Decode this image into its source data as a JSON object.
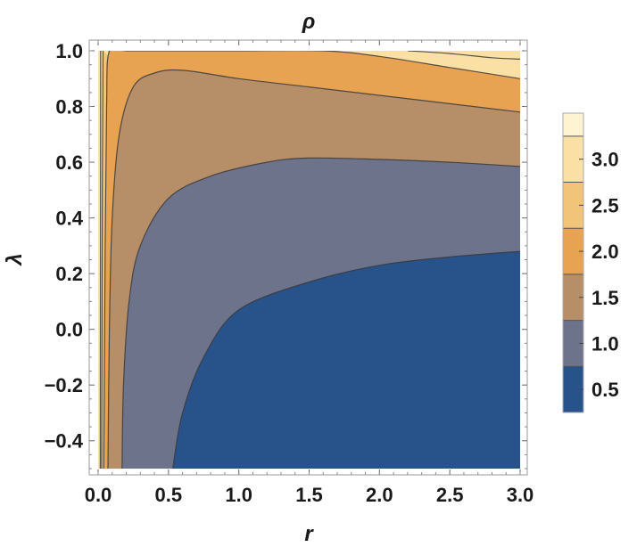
{
  "chart_data": {
    "type": "contour",
    "title": "ρ",
    "xlabel": "r",
    "ylabel": "λ",
    "xlim": [
      0,
      3
    ],
    "ylim": [
      -0.5,
      1.0
    ],
    "x_ticks": [
      {
        "value": 0.0,
        "label": "0.0"
      },
      {
        "value": 0.5,
        "label": "0.5"
      },
      {
        "value": 1.0,
        "label": "1.0"
      },
      {
        "value": 1.5,
        "label": "1.5"
      },
      {
        "value": 2.0,
        "label": "2.0"
      },
      {
        "value": 2.5,
        "label": "2.5"
      },
      {
        "value": 3.0,
        "label": "3.0"
      }
    ],
    "y_ticks": [
      {
        "value": -0.4,
        "label": "−0.4"
      },
      {
        "value": -0.2,
        "label": "−0.2"
      },
      {
        "value": 0.0,
        "label": "0.0"
      },
      {
        "value": 0.2,
        "label": "0.2"
      },
      {
        "value": 0.4,
        "label": "0.4"
      },
      {
        "value": 0.6,
        "label": "0.6"
      },
      {
        "value": 0.8,
        "label": "0.8"
      },
      {
        "value": 1.0,
        "label": "1.0"
      }
    ],
    "colorbar": {
      "range": [
        0.25,
        3.5
      ],
      "ticks": [
        {
          "value": 0.5,
          "label": "0.5"
        },
        {
          "value": 1.0,
          "label": "1.0"
        },
        {
          "value": 1.5,
          "label": "1.5"
        },
        {
          "value": 2.0,
          "label": "2.0"
        },
        {
          "value": 2.5,
          "label": "2.5"
        },
        {
          "value": 3.0,
          "label": "3.0"
        }
      ],
      "bands": [
        {
          "from": 0.25,
          "to": 0.75,
          "color": "#27528a"
        },
        {
          "from": 0.75,
          "to": 1.25,
          "color": "#6e738c"
        },
        {
          "from": 1.25,
          "to": 1.75,
          "color": "#b68e68"
        },
        {
          "from": 1.75,
          "to": 2.25,
          "color": "#e8a352"
        },
        {
          "from": 2.25,
          "to": 2.75,
          "color": "#f2c47a"
        },
        {
          "from": 2.75,
          "to": 3.25,
          "color": "#fbe0a6"
        },
        {
          "from": 3.25,
          "to": 3.5,
          "color": "#fff4d2"
        }
      ]
    },
    "contours": [
      {
        "level": 0.75,
        "points": [
          [
            0.53,
            -0.5
          ],
          [
            0.6,
            -0.3
          ],
          [
            0.75,
            -0.1
          ],
          [
            1.0,
            0.07
          ],
          [
            1.5,
            0.17
          ],
          [
            2.0,
            0.23
          ],
          [
            2.5,
            0.26
          ],
          [
            3.0,
            0.28
          ]
        ]
      },
      {
        "level": 1.25,
        "points": [
          [
            0.17,
            -0.5
          ],
          [
            0.18,
            -0.2
          ],
          [
            0.22,
            0.1
          ],
          [
            0.3,
            0.3
          ],
          [
            0.5,
            0.47
          ],
          [
            0.8,
            0.55
          ],
          [
            1.2,
            0.6
          ],
          [
            1.5,
            0.615
          ],
          [
            2.0,
            0.61
          ],
          [
            2.5,
            0.6
          ],
          [
            3.0,
            0.585
          ]
        ]
      },
      {
        "level": 1.75,
        "points": [
          [
            0.07,
            -0.5
          ],
          [
            0.08,
            0.0
          ],
          [
            0.1,
            0.4
          ],
          [
            0.15,
            0.7
          ],
          [
            0.25,
            0.87
          ],
          [
            0.4,
            0.92
          ],
          [
            0.6,
            0.93
          ],
          [
            1.0,
            0.9
          ],
          [
            1.5,
            0.87
          ],
          [
            2.0,
            0.84
          ],
          [
            2.5,
            0.81
          ],
          [
            3.0,
            0.78
          ]
        ]
      },
      {
        "level": 2.25,
        "points": [
          [
            0.04,
            -0.5
          ],
          [
            0.05,
            0.3
          ],
          [
            0.06,
            0.8
          ],
          [
            0.08,
            1.0
          ],
          [
            0.2,
            1.0
          ],
          [
            0.5,
            1.0
          ],
          [
            1.0,
            1.0
          ],
          [
            1.6,
            1.0
          ],
          [
            2.0,
            0.98
          ],
          [
            2.5,
            0.94
          ],
          [
            3.0,
            0.9
          ]
        ]
      },
      {
        "level": 2.75,
        "points": [
          [
            0.025,
            -0.5
          ],
          [
            0.03,
            0.5
          ],
          [
            0.035,
            1.0
          ]
        ]
      },
      {
        "level": 2.75,
        "points": [
          [
            2.2,
            1.0
          ],
          [
            2.5,
            0.99
          ],
          [
            2.8,
            0.975
          ],
          [
            3.0,
            0.97
          ]
        ]
      },
      {
        "level": 3.25,
        "points": [
          [
            0.015,
            -0.5
          ],
          [
            0.018,
            1.0
          ]
        ]
      }
    ]
  }
}
